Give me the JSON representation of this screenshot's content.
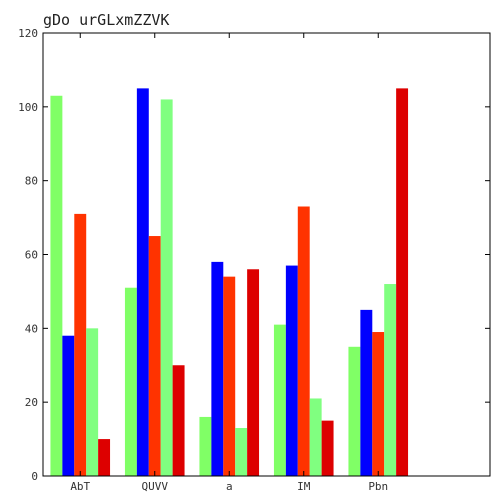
{
  "chart_data": {
    "type": "bar",
    "title": "gDo urGLxmZZVK",
    "xlabel": "",
    "ylabel": "",
    "categories": [
      "AbT",
      "QUVV",
      "a",
      "IM",
      "Pbn"
    ],
    "ylim": [
      0,
      120
    ],
    "yticks": [
      0,
      20,
      40,
      60,
      80,
      100,
      120
    ],
    "xlim": [
      -0.5,
      5.5
    ],
    "grid": false,
    "legend": "none",
    "series": [
      {
        "color": "#80ff66",
        "values": [
          103,
          51,
          16,
          41,
          35
        ]
      },
      {
        "color": "#0000ff",
        "values": [
          38,
          105,
          58,
          57,
          45
        ]
      },
      {
        "color": "#ff3300",
        "values": [
          71,
          65,
          54,
          73,
          39
        ]
      },
      {
        "color": "#80ff80",
        "values": [
          40,
          102,
          13,
          21,
          52
        ]
      },
      {
        "color": "#dd0000",
        "values": [
          10,
          30,
          56,
          15,
          105
        ]
      }
    ]
  }
}
